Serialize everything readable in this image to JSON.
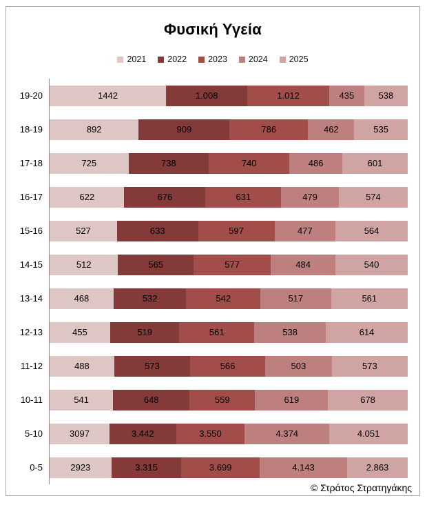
{
  "chart_data": {
    "type": "bar",
    "variant": "horizontal-100%-stacked",
    "title": "Φυσική Υγεία",
    "footer": "© Στράτος Στρατηγάκης",
    "grid": false,
    "legend_position": "top",
    "axis_color": "#8c8c8c",
    "frame_border_color": "#a6a6a6",
    "categories": [
      "19-20",
      "18-19",
      "17-18",
      "16-17",
      "15-16",
      "14-15",
      "13-14",
      "12-13",
      "11-12",
      "10-11",
      "5-10",
      "0-5"
    ],
    "series": [
      {
        "name": "2021",
        "color": "#ddc6c4",
        "values": [
          1442,
          892,
          725,
          622,
          527,
          512,
          468,
          455,
          488,
          541,
          3097,
          2923
        ],
        "labels": [
          "1442",
          "892",
          "725",
          "622",
          "527",
          "512",
          "468",
          "455",
          "488",
          "541",
          "3097",
          "2923"
        ]
      },
      {
        "name": "2022",
        "color": "#833a38",
        "values": [
          1008,
          909,
          738,
          676,
          633,
          565,
          532,
          519,
          573,
          648,
          3442,
          3315
        ],
        "labels": [
          "1.008",
          "909",
          "738",
          "676",
          "633",
          "565",
          "532",
          "519",
          "573",
          "648",
          "3.442",
          "3.315"
        ]
      },
      {
        "name": "2023",
        "color": "#a14e4b",
        "values": [
          1012,
          786,
          740,
          631,
          597,
          577,
          542,
          561,
          566,
          559,
          3550,
          3699
        ],
        "labels": [
          "1.012",
          "786",
          "740",
          "631",
          "597",
          "577",
          "542",
          "561",
          "566",
          "559",
          "3.550",
          "3.699"
        ]
      },
      {
        "name": "2024",
        "color": "#be807e",
        "values": [
          435,
          462,
          486,
          479,
          477,
          484,
          517,
          538,
          503,
          619,
          4374,
          4143
        ],
        "labels": [
          "435",
          "462",
          "486",
          "479",
          "477",
          "484",
          "517",
          "538",
          "503",
          "619",
          "4.374",
          "4.143"
        ]
      },
      {
        "name": "2025",
        "color": "#d0a4a2",
        "values": [
          538,
          535,
          601,
          574,
          564,
          540,
          561,
          614,
          573,
          678,
          4051,
          2863
        ],
        "labels": [
          "538",
          "535",
          "601",
          "574",
          "564",
          "540",
          "561",
          "614",
          "573",
          "678",
          "4.051",
          "2.863"
        ]
      }
    ]
  }
}
